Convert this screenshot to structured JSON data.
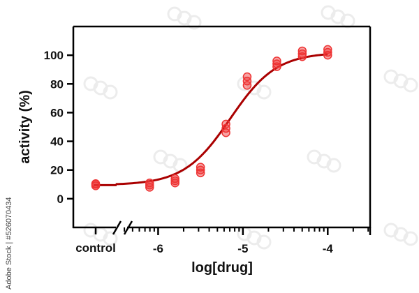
{
  "chart_data": {
    "type": "scatter",
    "xlabel": "log[drug]",
    "ylabel": "activity (%)",
    "control_label": "control",
    "x_ticks": [
      -6,
      -5,
      -4
    ],
    "y_ticks": [
      0,
      20,
      40,
      60,
      80,
      100
    ],
    "x_range": [
      -7,
      -3.5
    ],
    "ylim": [
      -20,
      120
    ],
    "series": [
      {
        "color": "#ee3333",
        "points": [
          {
            "x": "control",
            "y": 9
          },
          {
            "x": "control",
            "y": 10
          },
          {
            "x": "control",
            "y": 10.5
          },
          {
            "x": -6.1,
            "y": 8
          },
          {
            "x": -6.1,
            "y": 9.5
          },
          {
            "x": -6.1,
            "y": 11
          },
          {
            "x": -5.8,
            "y": 11
          },
          {
            "x": -5.8,
            "y": 12.5
          },
          {
            "x": -5.8,
            "y": 14
          },
          {
            "x": -5.5,
            "y": 18
          },
          {
            "x": -5.5,
            "y": 20
          },
          {
            "x": -5.5,
            "y": 22
          },
          {
            "x": -5.2,
            "y": 46
          },
          {
            "x": -5.2,
            "y": 49
          },
          {
            "x": -5.2,
            "y": 52
          },
          {
            "x": -4.95,
            "y": 79
          },
          {
            "x": -4.95,
            "y": 82
          },
          {
            "x": -4.95,
            "y": 85
          },
          {
            "x": -4.6,
            "y": 92
          },
          {
            "x": -4.6,
            "y": 94
          },
          {
            "x": -4.6,
            "y": 96
          },
          {
            "x": -4.3,
            "y": 99
          },
          {
            "x": -4.3,
            "y": 101
          },
          {
            "x": -4.3,
            "y": 103
          },
          {
            "x": -4.0,
            "y": 100
          },
          {
            "x": -4.0,
            "y": 102
          },
          {
            "x": -4.0,
            "y": 104
          }
        ]
      }
    ],
    "fit": {
      "type": "sigmoid",
      "color": "#aa0000",
      "bottom": 9.5,
      "top": 102,
      "logEC50": -5.15,
      "hill": 1.6,
      "x_start": -6.5,
      "x_end": -4.0,
      "control_y": 9.5
    },
    "grid": false
  },
  "watermark": {
    "side_text": "Adobe Stock | #526070434"
  }
}
